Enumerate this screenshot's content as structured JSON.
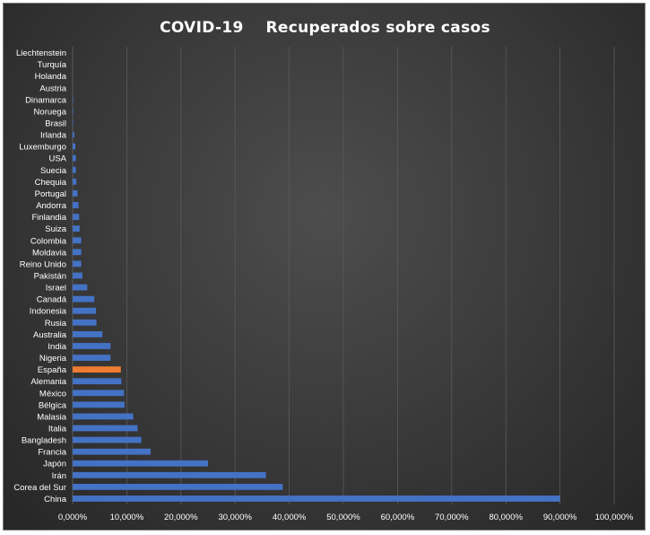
{
  "chart_data": {
    "type": "bar",
    "orientation": "horizontal",
    "title": "COVID-19    Recuperados sobre casos",
    "categories": [
      "Liechtenstein",
      "Turquía",
      "Holanda",
      "Austria",
      "Dinamarca",
      "Noruega",
      "Brasil",
      "Irlanda",
      "Luxemburgo",
      "USA",
      "Suecia",
      "Chequia",
      "Portugal",
      "Andorra",
      "Finlandia",
      "Suiza",
      "Colombia",
      "Moldavia",
      "Reino Unido",
      "Pakistán",
      "Israel",
      "Canadá",
      "Indonesia",
      "Rusia",
      "Australia",
      "India",
      "Nigeria",
      "España",
      "Alemania",
      "México",
      "Bélgica",
      "Malasia",
      "Italia",
      "Bangladesh",
      "Francia",
      "Japón",
      "Irán",
      "Corea del Sur",
      "China"
    ],
    "values": [
      0,
      0,
      0,
      0,
      0.1,
      0.1,
      0.1,
      0.3,
      0.5,
      0.6,
      0.6,
      0.7,
      0.9,
      1.1,
      1.2,
      1.3,
      1.6,
      1.6,
      1.6,
      1.8,
      2.7,
      4.0,
      4.3,
      4.4,
      5.5,
      7.0,
      7.0,
      8.9,
      9.0,
      9.5,
      9.6,
      11.2,
      12.0,
      12.7,
      14.4,
      25.0,
      35.7,
      38.8,
      90.0
    ],
    "highlight_category": "España",
    "xlim": [
      0,
      100
    ],
    "x_ticks": [
      0,
      10,
      20,
      30,
      40,
      50,
      60,
      70,
      80,
      90,
      100
    ],
    "x_tick_labels": [
      "0,000%",
      "10,000%",
      "20,000%",
      "30,000%",
      "40,000%",
      "50,000%",
      "60,000%",
      "70,000%",
      "80,000%",
      "90,000%",
      "100,000%"
    ],
    "grid": true,
    "legend": "none",
    "colors": {
      "bar": "#4472c4",
      "highlight": "#ed7d31",
      "grid": "#5a5a5a",
      "text": "#ffffff"
    }
  }
}
